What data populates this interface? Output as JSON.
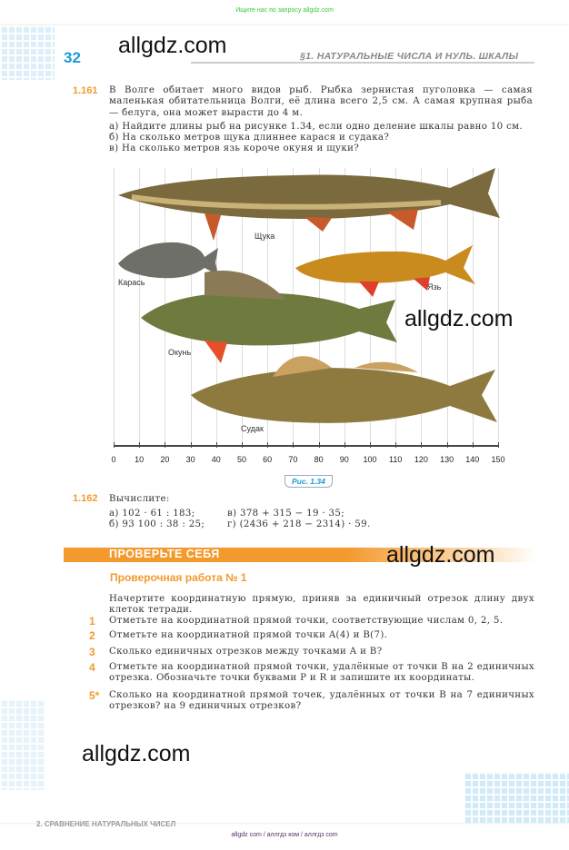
{
  "top_note": "Ищите нас по запросу allgdz.com",
  "watermark": "allgdz.com",
  "page_number": "32",
  "section_header": "§1. НАТУРАЛЬНЫЕ ЧИСЛА И НУЛЬ. ШКАЛЫ",
  "problem_161": {
    "number": "1.161",
    "text": "В Волге обитает много видов рыб. Рыбка зернистая пуголовка — самая маленькая обитательница Волги, её длина всего 2,5 см. А самая крупная рыба — белуга, она может вырасти до 4 м.",
    "items": [
      "а) Найдите длины рыб на рисунке 1.34, если одно деление шкалы равно 10 см.",
      "б) На сколько метров щука длиннее карася и судака?",
      "в) На сколько метров язь короче окуня и щуки?"
    ]
  },
  "figure": {
    "labels": {
      "pike": "Щука",
      "crucian": "Карась",
      "ide": "Язь",
      "perch": "Окунь",
      "zander": "Судак"
    },
    "scale_ticks": [
      "0",
      "10",
      "20",
      "30",
      "40",
      "50",
      "60",
      "70",
      "80",
      "90",
      "100",
      "110",
      "120",
      "130",
      "140",
      "150"
    ],
    "caption": "Рис. 1.34"
  },
  "problem_162": {
    "number": "1.162",
    "title": "Вычислите:",
    "a": "а) 102 · 61 : 183;",
    "b": "б) 93 100 : 38 : 25;",
    "v": "в) 378 + 315 − 19 · 35;",
    "g": "г) (2436 + 218 − 2314) · 59."
  },
  "check": {
    "banner": "ПРОВЕРЬТЕ СЕБЯ",
    "title": "Проверочная работа № 1",
    "intro": "Начертите координатную прямую, приняв за единичный отрезок длину двух клеток тетради.",
    "tasks": [
      {
        "n": "1",
        "t": "Отметьте на координатной прямой точки, соответствующие числам 0, 2, 5."
      },
      {
        "n": "2",
        "t": "Отметьте на координатной прямой точки A(4) и B(7)."
      },
      {
        "n": "3",
        "t": "Сколько единичных отрезков между точками A и B?"
      },
      {
        "n": "4",
        "t": "Отметьте на координатной прямой точки, удалённые от точки B на 2 единичных отрезка. Обозначьте точки буквами P и R и запишите их координаты."
      },
      {
        "n": "5*",
        "t": "Сколько на координатной прямой точек, удалённых от точки B на 7 единичных отрезков? на 9 единичных отрезков?"
      }
    ]
  },
  "next_page_header": "2. СРАВНЕНИЕ НАТУРАЛЬНЫХ ЧИСЕЛ",
  "footer": "allgdz com  /  аллгдз ком  /  аллгдз com"
}
